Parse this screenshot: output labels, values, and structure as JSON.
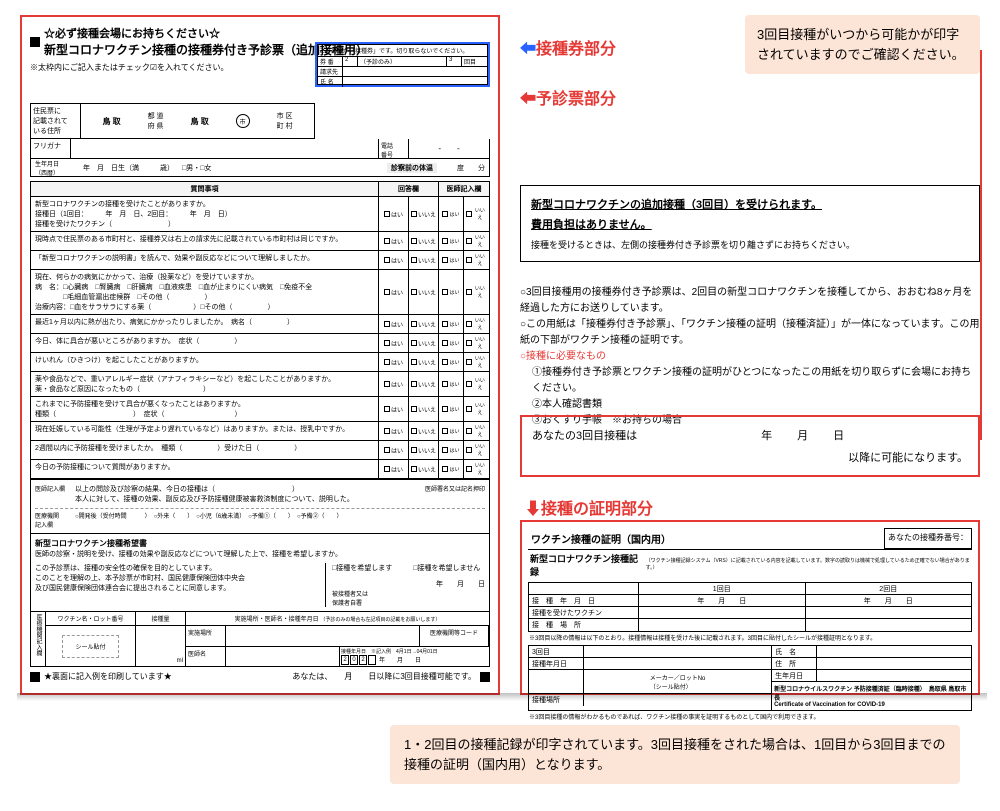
{
  "form": {
    "title_prefix": "☆必ず接種会場にお持ちください☆",
    "title_main": "新型コロナワクチン接種の接種券付き予診票（追加接種用）",
    "title_suffix": "■",
    "check_note": "※太枠内にご記入またはチェック☑を入れてください。",
    "ticket_header": "この部分が「接種券」です。切り取らないでください。",
    "ticket_rows": {
      "r1a": "券 番",
      "r1b": "2",
      "r1c": "（予診のみ）",
      "r1d": "3",
      "r1e": "回目",
      "r2a": "請求先",
      "r3a": "氏 名"
    },
    "addr_label": "住民票に\n記載されて\nいる住所",
    "addr_cells": [
      "鳥 取",
      "都 道\n府 県",
      "鳥 取",
      "市 区\n町 村"
    ],
    "furigana": "フリガナ",
    "tel_label": "電話\n番号",
    "birth_label": "生年月日\n（西暦）",
    "birth_text": "年　月　日生（満　　　歳）",
    "gender": "□男・□女",
    "temp_label": "診察前の体温",
    "temp_unit": "度　　分",
    "q_header": "質問事項",
    "q_ans_header": "回答欄",
    "q_dr_header": "医師記入欄",
    "questions": [
      "新型コロナワクチンの接種を受けたことがありますか。\n接種日（1回目：　　　年　月　日、2回目：　　　年　月　日）\n接種を受けたワクチン（　　　　　　　　）",
      "現時点で住民票のある市町村と、接種券又は右上の請求先に記載されている市町村は同じですか。",
      "「新型コロナワクチンの説明書」を読んで、効果や副反応などについて理解しましたか。",
      "現在、何らかの病気にかかって、治療（投薬など）を受けていますか。\n病　名：□心臓病　□腎臓病　□肝臓病　□血液疾患　□血が止まりにくい病気　□免疫不全\n　　　　□毛細血管漏出症候群　□その他（　　　　　）\n治療内容：□血をサラサラにする薬（　　　　　　）□その他（　　　　　）",
      "最近1ヶ月以内に熱が出たり、病気にかかったりしましたか。　病名（　　　　　）",
      "今日、体に具合が悪いところがありますか。　症状（　　　　　）",
      "けいれん（ひきつけ）を起こしたことがありますか。",
      "薬や食品などで、重いアレルギー症状（アナフィラキシーなど）を起こしたことがありますか。\n薬・食品など原因になったもの（　　　　　　　　　）",
      "これまでに予防接種を受けて具合が悪くなったことはありますか。\n種類（　　　　　　　　　　　）　症状（　　　　　　　　　　）",
      "現在妊娠している可能性（生理が予定より遅れているなど）はありますか。または、授乳中ですか。",
      "2週間以内に予防接種を受けましたか。　種類（　　　　　）受けた日（　　　　　）",
      "今日の予防接種について質問がありますか。"
    ],
    "yes": "はい",
    "no": "いいえ",
    "doctor_label": "医師記入欄",
    "doctor_text": "以上の問診及び診察の結果、今日の接種は（　　　　　　　　　　　）\n本人に対して、接種の効果、副反応及び予防接種健康被害救済制度について、説明した。",
    "doctor_sign": "医師署名又は記名押印",
    "sched_label": "医療機関\n記入欄",
    "sched_text": "○開発後（受付時間　　　）　○外来（　　）　○小児（6歳未満）　○予備①（　　）　○予備②（　　）",
    "hope_title": "新型コロナワクチン接種希望書",
    "hope_text": "医師の診察・説明を受け、接種の効果や副反応などについて理解した上で、接種を希望しますか。",
    "hope_text2": "この予診票は、接種の安全性の確保を目的としています。\nこのことを理解の上、本予診票が市町村、国民健康保険団体中央会\n及び国民健康保険団体連合会に提出されることに同意します。",
    "sig_date": "年　　月　　日",
    "sig_label": "被接種者又は\n保護者自署",
    "hope_options": "□接種を希望します　　　□接種を希望しません",
    "vr_header": [
      "ワクチン名・ロット番号",
      "接種量",
      "実施場所・医師名・接種年月日"
    ],
    "vr_sub": "（予診のみの場合も左記項目の記載をお願いします）",
    "vr_stamp": "シール貼付",
    "vr_hospital": "実施場所",
    "vr_doctor": "医師名",
    "vr_code": "医療機関等コード",
    "vr_ml": "ml",
    "vr_date": "接種年月日　※記入例　4月1日→04月01日",
    "vr_year": "202",
    "vr_md": "年　　月　　日",
    "footer_l": "★裏面に記入例を印刷しています★",
    "footer_r": "あなたは、　　月　　日以降に3回目接種可能です。"
  },
  "labels": {
    "ticket": "接種券部分",
    "form": "予診票部分",
    "cert": "接種の証明部分"
  },
  "callouts": {
    "top": "3回目接種がいつから可能かが印字されていますのでご確認ください。",
    "bottom": "1・2回目の接種記録が印字されています。3回目接種をされた場合は、1回目から3回目までの接種の証明（国内用）となります。"
  },
  "info": {
    "title1": "新型コロナワクチンの追加接種（3回目）を受けられます。",
    "title2": "費用負担はありません。",
    "sub": "接種を受けるときは、左側の接種券付き予診票を切り離さずにお持ちください。"
  },
  "bullets": {
    "b1": "○3回目接種用の接種券付き予診票は、2回目の新型コロナワクチンを接種してから、おおむね8ヶ月を経過した方にお送りしています。",
    "b2": "○この用紙は「接種券付き予診票」、「ワクチン接種の証明（接種済証）」が一体になっています。この用紙の下部がワクチン接種の証明です。",
    "b3_title": "○接種に必要なもの",
    "b3_1": "①接種券付き予診票とワクチン接種の証明がひとつになったこの用紙を切り取らずに会場にお持ちください。",
    "b3_2": "②本人確認書類",
    "b3_3": "③おくすり手帳　※お持ちの場合"
  },
  "datebox": {
    "label": "あなたの3回目接種は",
    "y": "年",
    "m": "月",
    "d": "日",
    "after": "以降に可能になります。"
  },
  "cert": {
    "header_l": "ワクチン接種の証明（国内用）",
    "header_r": "あなたの接種券番号：",
    "subtitle": "新型コロナワクチン接種記録",
    "subtitle_note": "（ワクチン接種記録システム（VRS）に記載されている内容を記載しています。数字の読取りは機械で処理しているため正確でない場合があります。）",
    "col1": "1回目",
    "col2": "2回目",
    "row1": "接　種　年　月　日",
    "row1v": "年　　月　　日",
    "row2": "接種を受けたワクチン",
    "row3": "接　種　場　所",
    "note3": "※3回目以降の情報は以下のとおり。接種情報は接種を受けた後に記載されます。3回目に貼付したシールが接種証明となります。",
    "left_rows": [
      "3回目",
      "接種年月日",
      "",
      "",
      "接種場所"
    ],
    "right_rows": [
      "氏　名",
      "住　所",
      "生年月日"
    ],
    "seal": "メーカー／ロットNo\n（シール貼付）",
    "issuer": "新型コロナウイルスワクチン 予防接種済証（臨時接種）　鳥取県 鳥取市長\nCertificate of Vaccination for COVID-19",
    "bottom_note": "※3回目接種の情報がわかるものであれば、ワクチン接種の事実を証明するものとして国内で利用できます。"
  }
}
